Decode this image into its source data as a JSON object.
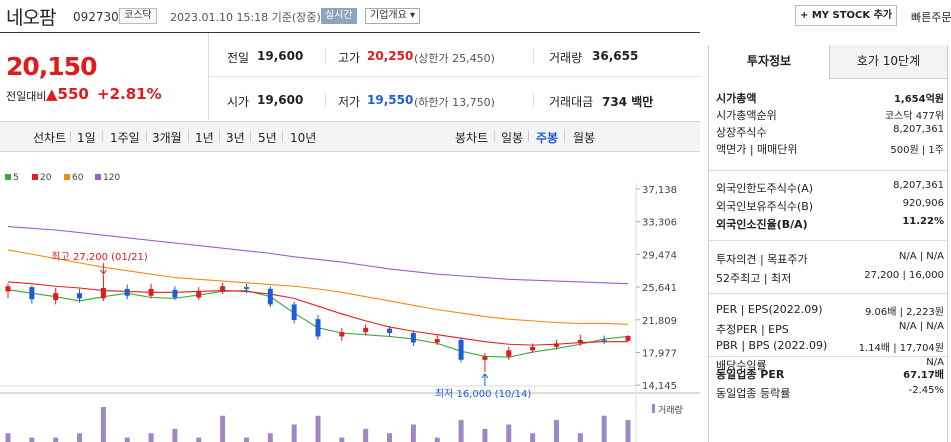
{
  "header": {
    "stock_name": "네오팜",
    "stock_code": "092730",
    "market": "코스닥",
    "datetime": "2023.01.10 15:18 기준(장중)",
    "realtime_label": "실시간",
    "company_info_label": "기업개요 ▾",
    "mystock_label": "+ MY STOCK 추가",
    "quick_order_label": "빠른주문"
  },
  "price": {
    "current": "20,150",
    "vs_label": "전일대비",
    "change": "▲550",
    "rate": "+2.81%"
  },
  "summary": {
    "prev_close_label": "전일",
    "prev_close": "19,600",
    "high_label": "고가",
    "high": "20,250",
    "upper_limit": "(상한가 25,450)",
    "volume_label": "거래량",
    "volume": "36,655",
    "open_label": "시가",
    "open": "19,600",
    "low_label": "저가",
    "low": "19,550",
    "lower_limit": "(하한가 13,750)",
    "trade_value_label": "거래대금",
    "trade_value": "734 백만"
  },
  "chart_tabs": {
    "line_label": "선차트",
    "line_tabs": [
      "1일",
      "1주일",
      "3개월",
      "1년",
      "3년",
      "5년",
      "10년"
    ],
    "candle_label": "봉차트",
    "candle_tabs": [
      "일봉",
      "주봉",
      "월봉"
    ],
    "active_candle": "주봉"
  },
  "colors": {
    "up": "#e01b1b",
    "down": "#1d5ed6",
    "ma5": "#3aa83a",
    "ma20": "#e02020",
    "ma60": "#f08c14",
    "ma120": "#9a5fc8",
    "volume": "#9b88c4"
  },
  "chart_data": {
    "type": "line",
    "legend": [
      "5",
      "20",
      "60",
      "120"
    ],
    "y_ticks": [
      "37,138",
      "33,306",
      "29,474",
      "25,641",
      "21,809",
      "17,977",
      "14,145"
    ],
    "ylim": [
      14145,
      37138
    ],
    "series": [
      {
        "name": "5",
        "values": [
          25500,
          25100,
          24700,
          24200,
          24700,
          25100,
          24600,
          24500,
          24900,
          25300,
          25400,
          24700,
          22800,
          21100,
          20500,
          20300,
          20100,
          19800,
          19300,
          18400,
          17800,
          17700,
          18300,
          18700,
          19200,
          19800,
          20100
        ]
      },
      {
        "name": "20",
        "values": [
          26400,
          26200,
          25900,
          25700,
          25400,
          25300,
          25200,
          25200,
          25300,
          25400,
          25300,
          25000,
          24500,
          23600,
          22700,
          21900,
          21200,
          20700,
          20300,
          19900,
          19500,
          19200,
          19100,
          19200,
          19400,
          19500,
          19500
        ]
      },
      {
        "name": "60",
        "values": [
          30100,
          29600,
          29100,
          28600,
          28100,
          27700,
          27300,
          26900,
          26700,
          26500,
          26300,
          26100,
          25900,
          25600,
          25200,
          24700,
          24200,
          23700,
          23200,
          22800,
          22400,
          22100,
          21900,
          21700,
          21600,
          21600,
          21500
        ]
      },
      {
        "name": "120",
        "values": [
          32800,
          32600,
          32400,
          32100,
          31800,
          31500,
          31200,
          30900,
          30600,
          30300,
          30000,
          29700,
          29300,
          29000,
          28700,
          28300,
          27900,
          27600,
          27300,
          27100,
          26900,
          26700,
          26600,
          26500,
          26400,
          26300,
          26200
        ]
      }
    ],
    "candles": [
      {
        "o": 25300,
        "c": 25900,
        "h": 26200,
        "l": 24500
      },
      {
        "o": 25800,
        "c": 24400,
        "h": 26000,
        "l": 23900
      },
      {
        "o": 24300,
        "c": 25100,
        "h": 25700,
        "l": 23800
      },
      {
        "o": 25100,
        "c": 24500,
        "h": 25600,
        "l": 24000
      },
      {
        "o": 24500,
        "c": 25700,
        "h": 27200,
        "l": 24200
      },
      {
        "o": 25600,
        "c": 24800,
        "h": 26100,
        "l": 24400
      },
      {
        "o": 24800,
        "c": 25600,
        "h": 26200,
        "l": 24500
      },
      {
        "o": 25500,
        "c": 24600,
        "h": 25900,
        "l": 24300
      },
      {
        "o": 24600,
        "c": 25300,
        "h": 25800,
        "l": 24300
      },
      {
        "o": 25300,
        "c": 25900,
        "h": 26300,
        "l": 25000
      },
      {
        "o": 25800,
        "c": 25600,
        "h": 26200,
        "l": 25100
      },
      {
        "o": 25600,
        "c": 23800,
        "h": 25900,
        "l": 23500
      },
      {
        "o": 23800,
        "c": 22000,
        "h": 24100,
        "l": 21600
      },
      {
        "o": 22100,
        "c": 20100,
        "h": 22600,
        "l": 19700
      },
      {
        "o": 20100,
        "c": 20600,
        "h": 21100,
        "l": 19600
      },
      {
        "o": 20600,
        "c": 21100,
        "h": 21500,
        "l": 20200
      },
      {
        "o": 21000,
        "c": 20500,
        "h": 21300,
        "l": 20100
      },
      {
        "o": 20500,
        "c": 19400,
        "h": 20800,
        "l": 19000
      },
      {
        "o": 19400,
        "c": 19800,
        "h": 20200,
        "l": 19100
      },
      {
        "o": 19700,
        "c": 17400,
        "h": 20000,
        "l": 17100
      },
      {
        "o": 17400,
        "c": 17800,
        "h": 18200,
        "l": 16000
      },
      {
        "o": 17800,
        "c": 18500,
        "h": 18900,
        "l": 17400
      },
      {
        "o": 18500,
        "c": 18900,
        "h": 19300,
        "l": 18200
      },
      {
        "o": 18900,
        "c": 19300,
        "h": 19700,
        "l": 18600
      },
      {
        "o": 19300,
        "c": 19700,
        "h": 20300,
        "l": 19000
      },
      {
        "o": 19700,
        "c": 19600,
        "h": 20200,
        "l": 19200
      },
      {
        "o": 19600,
        "c": 20150,
        "h": 20250,
        "l": 19550
      }
    ],
    "volume_values": [
      2,
      1,
      1,
      2,
      8,
      1,
      2,
      3,
      1,
      6,
      1,
      2,
      4,
      6,
      1,
      3,
      2,
      4,
      1,
      5,
      3,
      4,
      2,
      5,
      2,
      6,
      5
    ],
    "volume_label": "거래량",
    "annotations": {
      "high": "최고 27,200 (01/21)",
      "low": "최저 16,000 (10/14)"
    }
  },
  "invest": {
    "tab_active": "투자정보",
    "tab_inactive": "호가 10단계",
    "rows1": [
      {
        "k": "시가총액",
        "v": "1,654억원",
        "bold": true
      },
      {
        "k": "시가총액순위",
        "v": "코스닥 477위"
      },
      {
        "k": "상장주식수",
        "v": "8,207,361"
      },
      {
        "k": "액면가 | 매매단위",
        "v": "500원 | 1주"
      }
    ],
    "rows2": [
      {
        "k": "외국인한도주식수(A)",
        "v": "8,207,361"
      },
      {
        "k": "외국인보유주식수(B)",
        "v": "920,906"
      },
      {
        "k": "외국인소진율(B/A)",
        "v": "11.22%",
        "bold": true
      }
    ],
    "rows3": [
      {
        "k": "투자의견 | 목표주가",
        "v": "N/A | N/A"
      },
      {
        "k": "52주최고 | 최저",
        "v": "27,200 | 16,000"
      }
    ],
    "rows4": [
      {
        "k": "PER | EPS(2022.09)",
        "v": "9.06배 | 2,223원"
      },
      {
        "k": "추정PER | EPS",
        "v": "N/A | N/A"
      },
      {
        "k": "PBR | BPS (2022.09)",
        "v": "1.14배 | 17,704원"
      },
      {
        "k": "배당수익률",
        "v": "N/A"
      }
    ],
    "rows5": [
      {
        "k": "동일업종 PER",
        "v": "67.17배",
        "bold": true
      },
      {
        "k": "동일업종 등락률",
        "v": "-2.45%"
      }
    ]
  }
}
